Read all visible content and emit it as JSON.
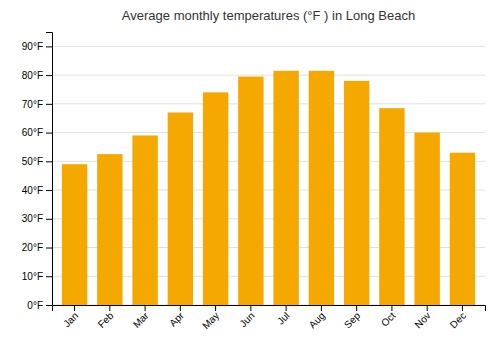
{
  "chart_data": {
    "type": "bar",
    "title": "Average monthly temperatures (°F ) in Long Beach",
    "categories": [
      "Jan",
      "Feb",
      "Mar",
      "Apr",
      "May",
      "Jun",
      "Jul",
      "Aug",
      "Sep",
      "Oct",
      "Nov",
      "Dec"
    ],
    "values": [
      49,
      52.5,
      59,
      67,
      74,
      79.5,
      81.5,
      81.5,
      78,
      68.5,
      60,
      53
    ],
    "color": "#F5A800",
    "ylim": [
      0,
      95
    ],
    "yticks": [
      {
        "value": 0,
        "label": "0°F"
      },
      {
        "value": 10,
        "label": "10°F"
      },
      {
        "value": 20,
        "label": "20°F"
      },
      {
        "value": 30,
        "label": "30°F"
      },
      {
        "value": 40,
        "label": "40°F"
      },
      {
        "value": 50,
        "label": "50°F"
      },
      {
        "value": 60,
        "label": "60°F"
      },
      {
        "value": 70,
        "label": "70°F"
      },
      {
        "value": 80,
        "label": "80°F"
      },
      {
        "value": 90,
        "label": "90°F"
      }
    ],
    "grid": true
  }
}
